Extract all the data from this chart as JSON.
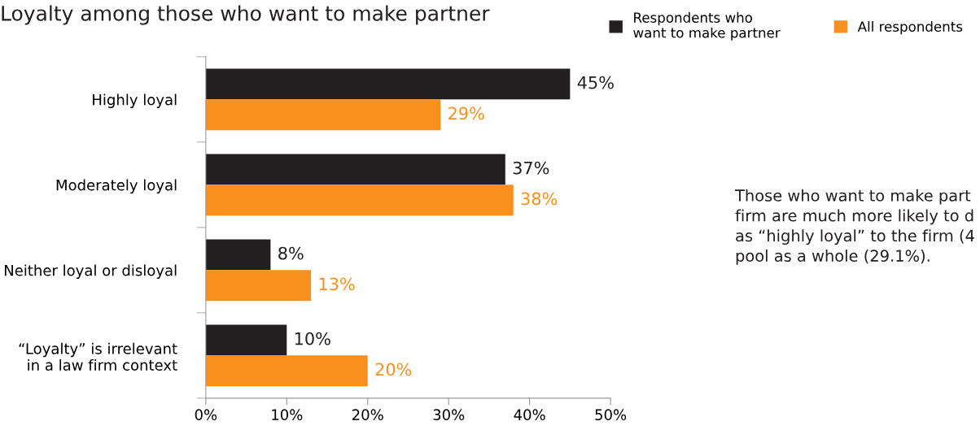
{
  "chart_data": {
    "type": "bar",
    "orientation": "horizontal",
    "title": "Loyalty among those who want to make partner",
    "categories": [
      "Highly loyal",
      "Moderately loyal",
      "Neither loyal or disloyal",
      "“Loyalty” is irrelevant\nin a law firm context"
    ],
    "series": [
      {
        "name": "Respondents who\nwant to make partner",
        "color": "#231f20",
        "values": [
          45,
          37,
          8,
          10
        ],
        "value_labels": [
          "45%",
          "37%",
          "8%",
          "10%"
        ]
      },
      {
        "name": "All respondents",
        "color": "#f7901e",
        "values": [
          29,
          38,
          13,
          20
        ],
        "value_labels": [
          "29%",
          "38%",
          "13%",
          "20%"
        ]
      }
    ],
    "xlim": [
      0,
      50
    ],
    "xticks": [
      {
        "value": 0,
        "label": "0%"
      },
      {
        "value": 10,
        "label": "10%"
      },
      {
        "value": 20,
        "label": "20%"
      },
      {
        "value": 30,
        "label": "30%"
      },
      {
        "value": 40,
        "label": "40%"
      },
      {
        "value": 50,
        "label": "50%"
      }
    ],
    "legend": "top right",
    "grid": false,
    "annotations": [
      "Those who want to make part\nfirm are much more likely to d\nas “highly loyal” to the firm (4\npool as a whole (29.1%)."
    ]
  }
}
